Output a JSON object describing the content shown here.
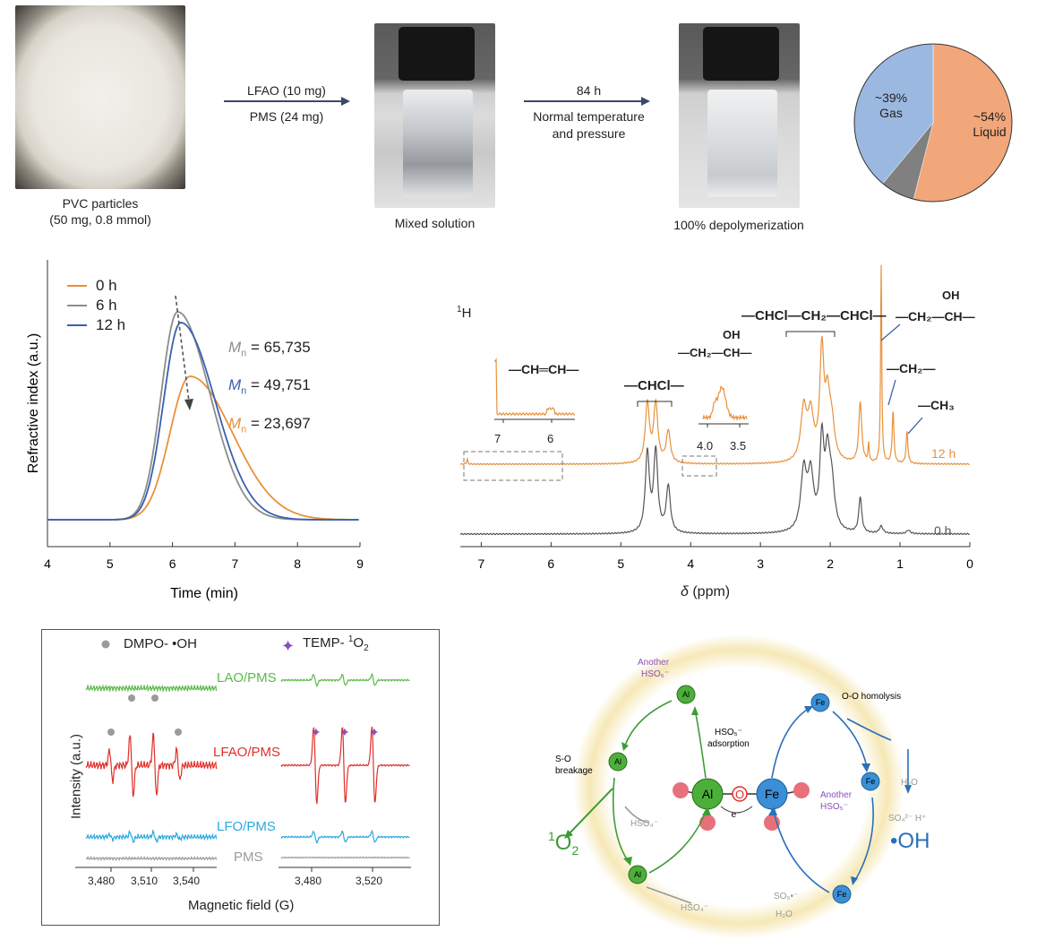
{
  "top": {
    "pvc_caption_1": "PVC particles",
    "pvc_caption_2": "(50 mg, 0.8 mmol)",
    "arrow1_line1": "LFAO (10 mg)",
    "arrow1_line2": "PMS (24 mg)",
    "mixed_caption": "Mixed solution",
    "arrow2_line1": "84 h",
    "arrow2_line2": "Normal temperature",
    "arrow2_line3": "and pressure",
    "depoly_caption": "100% depolymerization",
    "pie": {
      "slices": [
        {
          "label_pct": "~54%",
          "label_name": "Liquid",
          "value": 54,
          "color": "#f2a77a"
        },
        {
          "label_pct": "",
          "label_name": "",
          "value": 7,
          "color": "#808080"
        },
        {
          "label_pct": "~39%",
          "label_name": "Gas",
          "value": 39,
          "color": "#9bb9e0"
        }
      ]
    }
  },
  "gpc": {
    "ylabel": "Refractive index (a.u.)",
    "xlabel": "Time (min)",
    "legend": [
      "0 h",
      "6 h",
      "12 h"
    ],
    "mn_symbol": "M",
    "mn_sub": "n",
    "mn": [
      {
        "value": "= 65,735",
        "color": "#8c8c8c"
      },
      {
        "value": "= 49,751",
        "color": "#3a5fb0"
      },
      {
        "value": "= 23,697",
        "color": "#e8913a"
      }
    ],
    "xticks": [
      "4",
      "5",
      "6",
      "7",
      "8",
      "9"
    ]
  },
  "nmr": {
    "nucleus_sup": "1",
    "nucleus": "H",
    "xlabel_sym": "δ",
    "xlabel_unit": "(ppm)",
    "xticks": [
      "7",
      "6",
      "5",
      "4",
      "3",
      "2",
      "1",
      "0"
    ],
    "trace_12h": "12 h",
    "trace_0h": "0 h",
    "inset1_ticks": [
      "7",
      "6"
    ],
    "inset2_ticks": [
      "4.0",
      "3.5"
    ],
    "struct_chch": "—CH═CH—",
    "struct_chcl": "—CHCl—",
    "struct_ch2choh_a": "—CH₂—CH—",
    "struct_oh": "OH",
    "struct_chain": "—CHCl—CH₂—CHCl—",
    "struct_ch2choh_b": "—CH₂—CH—",
    "struct_ch2": "—CH₂—",
    "struct_ch3": "—CH₃"
  },
  "epr": {
    "legend_dmpo": "DMPO- •OH",
    "legend_temp_pre": "TEMP- ",
    "legend_temp_sup": "1",
    "legend_temp_o": "O",
    "legend_temp_sub": "2",
    "labels": [
      {
        "text": "LAO/PMS",
        "color": "#5cb84a"
      },
      {
        "text": "LFAO/PMS",
        "color": "#e0302a"
      },
      {
        "text": "LFO/PMS",
        "color": "#2aa9e0"
      },
      {
        "text": "PMS",
        "color": "#9a9a9a"
      }
    ],
    "ylabel": "Intensity (a.u.)",
    "xlabel": "Magnetic field (G)",
    "xticks_left": [
      "3,480",
      "3,510",
      "3,540"
    ],
    "xticks_right": [
      "3,480",
      "3,520"
    ]
  },
  "mech": {
    "another_hso5_top": "Another",
    "hso5_top": "HSO₅⁻",
    "hso5_ads_1": "HSO₅⁻",
    "hso5_ads_2": "adsorption",
    "oo_homolysis": "O-O homolysis",
    "so_breakage_1": "S-O",
    "so_breakage_2": "breakage",
    "hso4_a": "HSO₄⁻",
    "hso4_b": "HSO₄⁻",
    "singlet_sup": "1",
    "singlet": "O",
    "singlet_sub": "2",
    "oh_radical": "•OH",
    "h2o_right": "H₂O",
    "so4_right": "SO₄²⁻ H⁺",
    "another_hso5_right_1": "Another",
    "another_hso5_right_2": "HSO₅⁻",
    "so5_bottom": "SO₅•⁻",
    "h2o_bottom": "H₂O",
    "al": "Al",
    "fe": "Fe",
    "o": "O",
    "electron": "e⁻"
  }
}
